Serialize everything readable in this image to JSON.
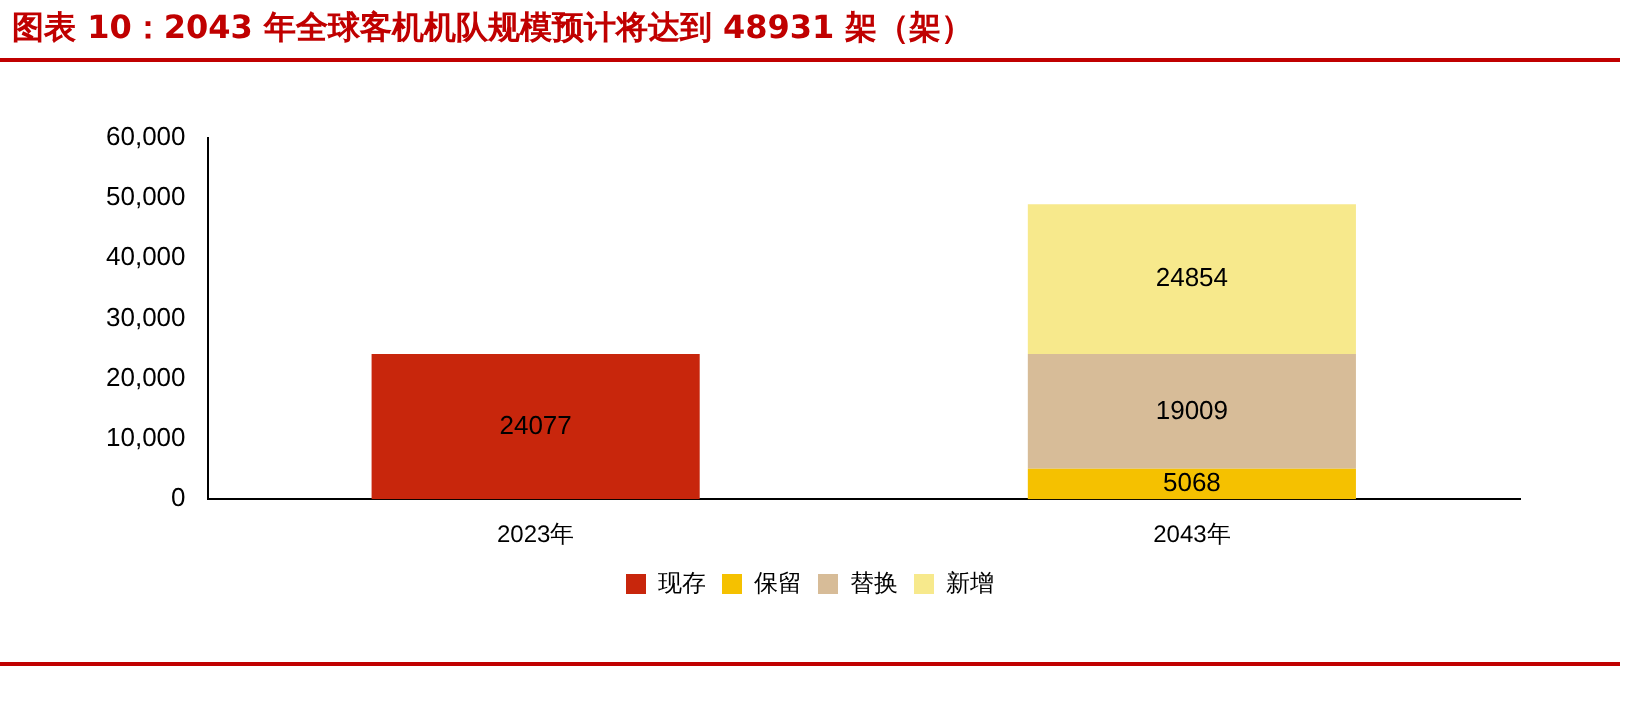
{
  "chart_data": {
    "type": "bar",
    "title": "图表 10：2043 年全球客机机队规模预计将达到 48931 架（架）",
    "categories": [
      "2023年",
      "2043年"
    ],
    "stacked": true,
    "series": [
      {
        "name": "现存",
        "color": "#c8260c",
        "values": [
          24077,
          null
        ]
      },
      {
        "name": "保留",
        "color": "#f5c100",
        "values": [
          null,
          5068
        ]
      },
      {
        "name": "替换",
        "color": "#d7bc98",
        "values": [
          null,
          19009
        ]
      },
      {
        "name": "新增",
        "color": "#f7e98c",
        "values": [
          null,
          24854
        ]
      }
    ],
    "ylim": [
      0,
      60000
    ],
    "yticks": [
      0,
      {
        "value": 10000,
        "label": "10,000"
      },
      {
        "value": 20000,
        "label": "20,000"
      },
      {
        "value": 30000,
        "label": "30,000"
      },
      {
        "value": 40000,
        "label": "40,000"
      },
      {
        "value": 50000,
        "label": "50,000"
      },
      {
        "value": 60000,
        "label": "60,000"
      }
    ],
    "data_labels": true,
    "legend": "bottom",
    "grid": false
  }
}
